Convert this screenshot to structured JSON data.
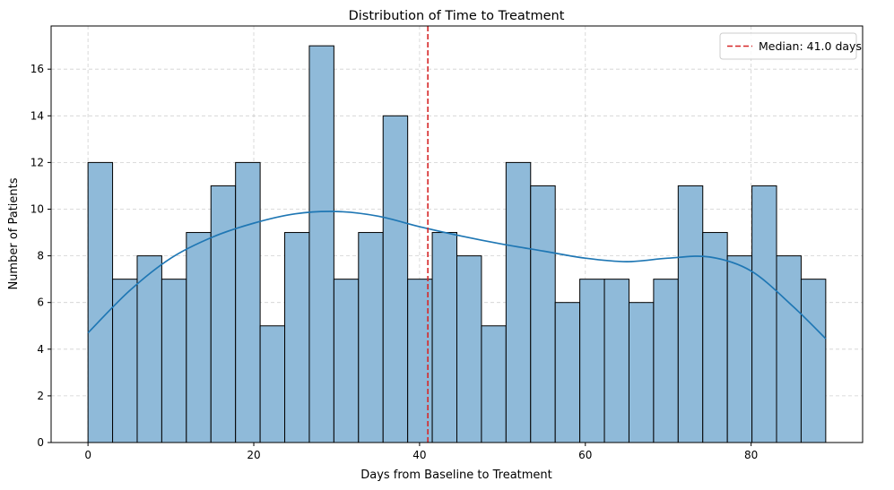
{
  "chart_data": {
    "type": "bar",
    "subtype": "histogram",
    "title": "Distribution of Time to Treatment",
    "xlabel": "Days from Baseline to Treatment",
    "ylabel": "Number of Patients",
    "xlim": [
      -4.45,
      93.45
    ],
    "ylim": [
      0,
      17.85
    ],
    "xticks": [
      0,
      20,
      40,
      60,
      80
    ],
    "yticks": [
      0,
      2,
      4,
      6,
      8,
      10,
      12,
      14,
      16
    ],
    "grid": true,
    "bin_edges": [
      0,
      2.966667,
      5.933333,
      8.9,
      11.866667,
      14.833333,
      17.8,
      20.766667,
      23.733333,
      26.7,
      29.666667,
      32.633333,
      35.6,
      38.566667,
      41.533333,
      44.5,
      47.466667,
      50.433333,
      53.4,
      56.366667,
      59.333333,
      62.3,
      65.266667,
      68.233333,
      71.2,
      74.166667,
      77.133333,
      80.1,
      83.066667,
      86.033333,
      89
    ],
    "values": [
      12,
      7,
      8,
      7,
      9,
      11,
      12,
      5,
      9,
      17,
      7,
      9,
      14,
      7,
      9,
      8,
      5,
      12,
      11,
      6,
      7,
      7,
      6,
      7,
      11,
      9,
      8,
      11,
      8,
      7
    ],
    "bar_color": "#8fbad9",
    "bar_edge_color": "#000000",
    "kde": {
      "color": "#1f77b4",
      "x": [
        0,
        5,
        10,
        15,
        20,
        25,
        30,
        35,
        40,
        45,
        50,
        55,
        60,
        65,
        70,
        75,
        80,
        85,
        89
      ],
      "y": [
        4.7,
        6.5,
        7.9,
        8.8,
        9.4,
        9.8,
        9.9,
        9.7,
        9.25,
        8.85,
        8.5,
        8.2,
        7.9,
        7.75,
        7.9,
        7.95,
        7.35,
        5.85,
        4.45
      ]
    },
    "median_line": {
      "value": 41.0,
      "color": "#d62728",
      "label": "Median: 41.0 days"
    },
    "legend_position": "top-right"
  }
}
